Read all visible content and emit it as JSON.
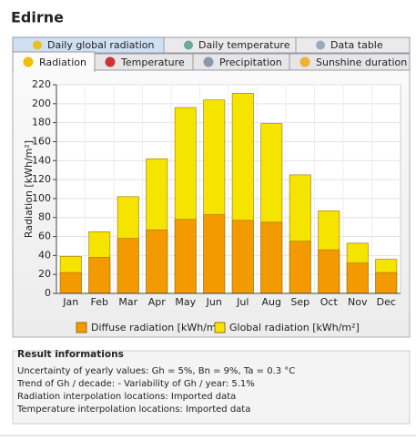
{
  "header": {
    "title": "Edirne"
  },
  "tabs_top": [
    "Daily global radiation",
    "Daily temperature",
    "Data table"
  ],
  "tabs_bottom": [
    "Radiation",
    "Temperature",
    "Precipitation",
    "Sunshine duration"
  ],
  "chart_data": {
    "type": "bar",
    "ylabel": "Radiation [kWh/m²]",
    "categories": [
      "Jan",
      "Feb",
      "Mar",
      "Apr",
      "May",
      "Jun",
      "Jul",
      "Aug",
      "Sep",
      "Oct",
      "Nov",
      "Dec"
    ],
    "series": [
      {
        "name": "Global radiation [kWh/m²]",
        "color": "#f5e400",
        "values": [
          39,
          65,
          102,
          142,
          196,
          204,
          211,
          179,
          125,
          87,
          53,
          36
        ]
      },
      {
        "name": "Diffuse radiation [kWh/m²]",
        "color": "#f29a00",
        "values": [
          22,
          38,
          58,
          67,
          78,
          83,
          77,
          75,
          55,
          46,
          32,
          22
        ]
      }
    ],
    "ylim": [
      0,
      220
    ],
    "yticks": [
      0,
      20,
      40,
      60,
      80,
      100,
      120,
      140,
      160,
      180,
      200,
      220
    ],
    "grid": true
  },
  "result": {
    "title": "Result informations",
    "lines": [
      "Uncertainty of yearly values: Gh = 5%, Bn = 9%, Ta = 0.3 °C",
      "Trend of Gh / decade: -   Variability of Gh / year: 5.1%",
      "Radiation interpolation locations: Imported data",
      "Temperature interpolation locations: Imported data"
    ]
  }
}
